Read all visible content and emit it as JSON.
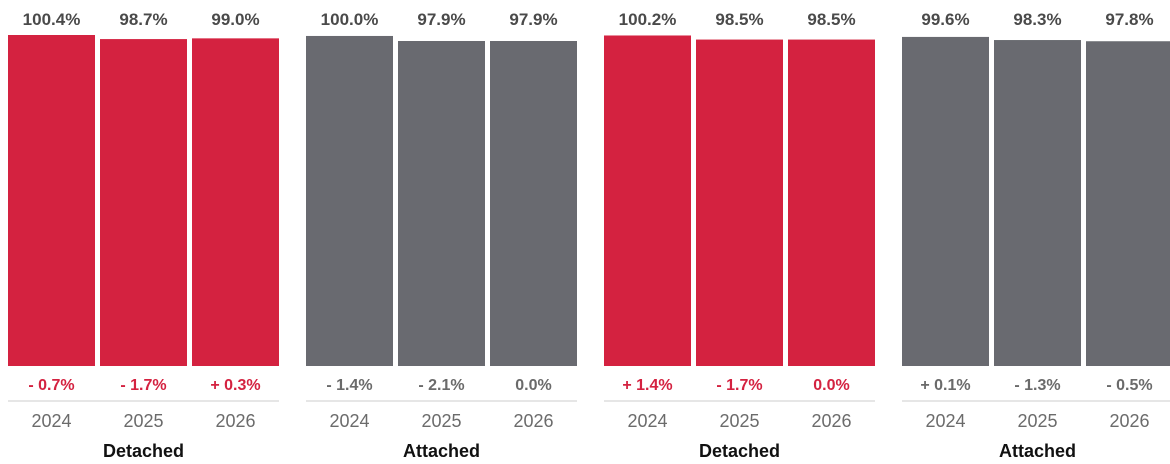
{
  "chart_data": {
    "type": "bar",
    "colors": {
      "detached": "#d42240",
      "attached": "#696a70",
      "detached_change_text": "#d42240",
      "attached_change_text": "#6a6a6a",
      "value_text": "#4a4a4a",
      "axis_line": "#cccccc"
    },
    "panels": [
      {
        "group": "Detached",
        "color_key": "detached",
        "categories": [
          "2024",
          "2025",
          "2026"
        ],
        "values": [
          100.4,
          98.7,
          99.0
        ],
        "value_labels": [
          "100.4%",
          "98.7%",
          "99.0%"
        ],
        "change_labels": [
          "- 0.7%",
          "- 1.7%",
          "+ 0.3%"
        ]
      },
      {
        "group": "Attached",
        "color_key": "attached",
        "categories": [
          "2024",
          "2025",
          "2026"
        ],
        "values": [
          100.0,
          97.9,
          97.9
        ],
        "value_labels": [
          "100.0%",
          "97.9%",
          "97.9%"
        ],
        "change_labels": [
          "- 1.4%",
          "- 2.1%",
          "0.0%"
        ]
      },
      {
        "group": "Detached",
        "color_key": "detached",
        "categories": [
          "2024",
          "2025",
          "2026"
        ],
        "values": [
          100.2,
          98.5,
          98.5
        ],
        "value_labels": [
          "100.2%",
          "98.5%",
          "98.5%"
        ],
        "change_labels": [
          "+ 1.4%",
          "- 1.7%",
          "0.0%"
        ]
      },
      {
        "group": "Attached",
        "color_key": "attached",
        "categories": [
          "2024",
          "2025",
          "2026"
        ],
        "values": [
          99.6,
          98.3,
          97.8
        ],
        "value_labels": [
          "99.6%",
          "98.3%",
          "97.8%"
        ],
        "change_labels": [
          "+ 0.1%",
          "- 1.3%",
          "- 0.5%"
        ]
      }
    ]
  }
}
